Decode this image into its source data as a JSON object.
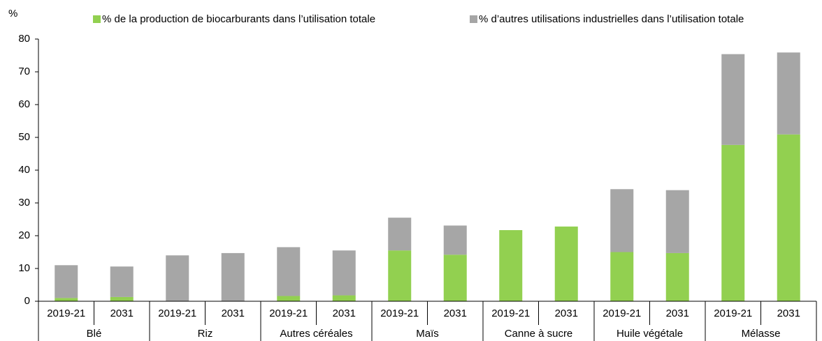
{
  "chart_data": {
    "type": "stacked_bar",
    "axis_label": "%",
    "categories": [
      "2019-21",
      "2031",
      "2019-21",
      "2031",
      "2019-21",
      "2031",
      "2019-21",
      "2031",
      "2019-21",
      "2031",
      "2019-21",
      "2031",
      "2019-21",
      "2031"
    ],
    "groups": [
      "Blé",
      "Riz",
      "Autres céréales",
      "Maïs",
      "Canne à sucre",
      "Huile végétale",
      "Mélasse"
    ],
    "series": [
      {
        "name": "% de la production de biocarburants dans l’utilisation totale",
        "color": "#92d050",
        "values": [
          1.0,
          1.3,
          0,
          0,
          1.6,
          1.8,
          15.5,
          14.2,
          21.7,
          22.8,
          15.0,
          14.7,
          47.7,
          50.9
        ]
      },
      {
        "name": "% d’autres utilisations industrielles dans l’utilisation totale",
        "color": "#a6a6a6",
        "values": [
          10.0,
          9.3,
          14.0,
          14.7,
          14.9,
          13.7,
          10.0,
          8.9,
          0,
          0,
          19.2,
          19.2,
          27.7,
          25.0
        ]
      }
    ],
    "ylim": [
      0,
      80
    ],
    "yticks": [
      0,
      10,
      20,
      30,
      40,
      50,
      60,
      70,
      80
    ]
  }
}
